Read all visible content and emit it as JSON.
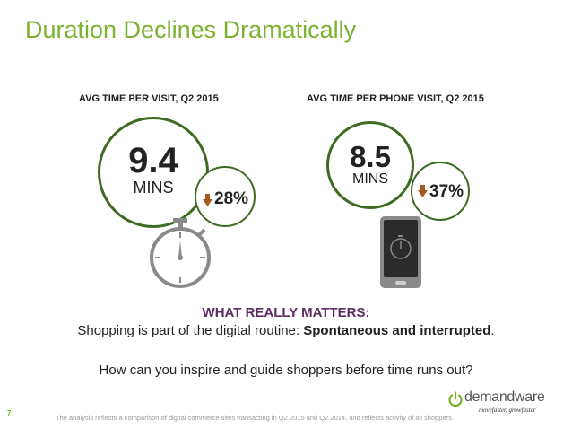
{
  "slide": {
    "title": "Duration Declines Dramatically",
    "page_number": "7"
  },
  "left_stat": {
    "label": "AVG TIME PER VISIT, Q2 2015",
    "value": "9.4",
    "unit": "MINS",
    "change": "28%",
    "change_direction_icon": "down-arrow-icon",
    "image_icon": "stopwatch-icon"
  },
  "right_stat": {
    "label": "AVG TIME PER PHONE VISIT, Q2 2015",
    "value": "8.5",
    "unit": "MINS",
    "change": "37%",
    "change_direction_icon": "down-arrow-icon",
    "image_icon": "smartphone-stopwatch-icon"
  },
  "message": {
    "heading": "WHAT REALLY MATTERS:",
    "routine_prefix": "Shopping is part of the digital routine: ",
    "routine_emphasis": "Spontaneous and interrupted",
    "routine_suffix": ".",
    "question": "How can you inspire and guide shoppers before time runs out?"
  },
  "footer": {
    "footnote": "The analysis reflects a comparison of digital commerce sites transacting in Q2 2015 and Q2 2014, and reflects activity of all shoppers.",
    "brand_name": "demandware",
    "brand_tagline_prefix": "movefaster,",
    "brand_tagline_suffix": " growfaster",
    "brand_icon": "power-icon"
  },
  "colors": {
    "title_green": "#7ab32e",
    "circle_green": "#3d6b22",
    "arrow_orange": "#a55a1e",
    "heading_purple": "#5e2a63",
    "icon_gray": "#8a8a8a"
  }
}
